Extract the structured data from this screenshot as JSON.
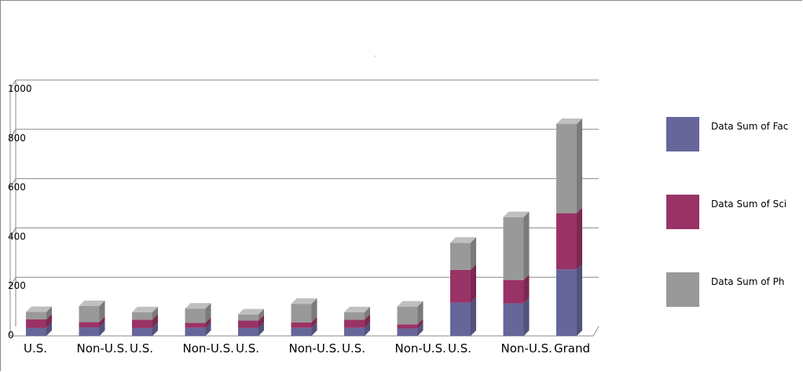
{
  "chart_data": {
    "type": "bar",
    "stacked": true,
    "three_d": true,
    "title": ".",
    "categories": [
      "U.S.",
      "Non-U.S.",
      "U.S.",
      "Non-U.S.",
      "U.S.",
      "Non-U.S.",
      "U.S.",
      "Non-U.S.",
      "U.S.",
      "Non-U.S.",
      "Grand"
    ],
    "series": [
      {
        "name": "Data Sum of  Fac",
        "color": "#66669a",
        "values": [
          32,
          35,
          32,
          33,
          32,
          33,
          33,
          30,
          135,
          132,
          270
        ]
      },
      {
        "name": "Data Sum of  Sci",
        "color": "#993366",
        "values": [
          35,
          21,
          34,
          20,
          30,
          22,
          33,
          17,
          133,
          95,
          228
        ]
      },
      {
        "name": "Data Sum of  Ph",
        "color": "#999999",
        "values": [
          30,
          65,
          30,
          58,
          25,
          75,
          30,
          72,
          110,
          255,
          362
        ]
      }
    ],
    "y_ticks": [
      "0",
      "200",
      "400",
      "600",
      "800",
      "1000"
    ],
    "ylim": [
      0,
      1000
    ],
    "grid": true,
    "legend_position": "right"
  }
}
